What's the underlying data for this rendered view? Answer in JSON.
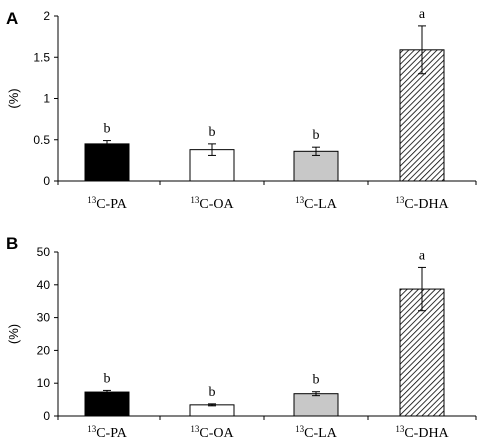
{
  "chart_data": [
    {
      "type": "bar",
      "panel": "A",
      "ylabel": "(%)",
      "categories": [
        {
          "sup": "13",
          "name": "C-PA"
        },
        {
          "sup": "13",
          "name": "C-OA"
        },
        {
          "sup": "13",
          "name": "C-LA"
        },
        {
          "sup": "13",
          "name": "C-DHA"
        }
      ],
      "values": [
        0.45,
        0.38,
        0.36,
        1.59
      ],
      "errors": [
        0.04,
        0.07,
        0.05,
        0.29
      ],
      "significance": [
        "b",
        "b",
        "b",
        "a"
      ],
      "ylim": [
        0,
        2
      ],
      "yticks": [
        0,
        0.5,
        1,
        1.5,
        2
      ],
      "ytick_labels": [
        "0",
        "0.5",
        "1",
        "1.5",
        "2"
      ],
      "fills": [
        "black",
        "white",
        "lightgray",
        "hatched"
      ],
      "grid": false
    },
    {
      "type": "bar",
      "panel": "B",
      "ylabel": "(%)",
      "categories": [
        {
          "sup": "13",
          "name": "C-PA"
        },
        {
          "sup": "13",
          "name": "C-OA"
        },
        {
          "sup": "13",
          "name": "C-LA"
        },
        {
          "sup": "13",
          "name": "C-DHA"
        }
      ],
      "values": [
        7.3,
        3.4,
        6.8,
        38.7
      ],
      "errors": [
        0.5,
        0.3,
        0.6,
        6.6
      ],
      "significance": [
        "b",
        "b",
        "b",
        "a"
      ],
      "ylim": [
        0,
        50
      ],
      "yticks": [
        0,
        10,
        20,
        30,
        40,
        50
      ],
      "ytick_labels": [
        "0",
        "10",
        "20",
        "30",
        "40",
        "50"
      ],
      "fills": [
        "black",
        "white",
        "lightgray",
        "hatched"
      ],
      "grid": false
    }
  ],
  "colors": {
    "black_bar": "#000000",
    "white_bar": "#ffffff",
    "gray_bar": "#c8c8c8",
    "hatch_line": "#000000"
  }
}
